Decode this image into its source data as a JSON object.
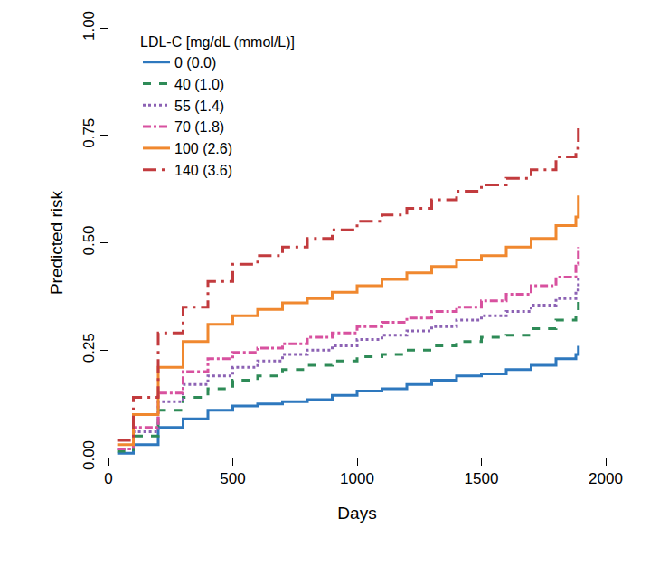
{
  "chart_data": {
    "type": "line",
    "x_label": "Days",
    "y_label": "Predicted risk",
    "legend_title": "LDL-C [mg/dL (mmol/L)]",
    "legend": "top-left",
    "grid": false,
    "marker": "none",
    "x": [
      35,
      100,
      200,
      300,
      400,
      500,
      600,
      700,
      800,
      900,
      1000,
      1100,
      1200,
      1300,
      1400,
      1500,
      1600,
      1700,
      1800,
      1880,
      1890
    ],
    "xlim": [
      0,
      2000
    ],
    "xticks": [
      0,
      500,
      1000,
      1500,
      2000
    ],
    "ylim": [
      0,
      1
    ],
    "yticks": [
      {
        "value": 0,
        "label": "0.00"
      },
      {
        "value": 0.25,
        "label": "0.25"
      },
      {
        "value": 0.5,
        "label": "0.50"
      },
      {
        "value": 0.75,
        "label": "0.75"
      },
      {
        "value": 1,
        "label": "1.00"
      }
    ],
    "series": [
      {
        "name": "0 (0.0)",
        "color": "#2e78be",
        "line_style": "solid",
        "values": [
          0.01,
          0.03,
          0.07,
          0.09,
          0.11,
          0.12,
          0.125,
          0.13,
          0.135,
          0.145,
          0.155,
          0.16,
          0.17,
          0.18,
          0.19,
          0.195,
          0.205,
          0.215,
          0.23,
          0.24,
          0.26
        ]
      },
      {
        "name": "40 (1.0)",
        "color": "#2e8b57",
        "line_style": "dashed",
        "values": [
          0.015,
          0.05,
          0.11,
          0.14,
          0.16,
          0.18,
          0.19,
          0.205,
          0.215,
          0.225,
          0.235,
          0.24,
          0.25,
          0.26,
          0.27,
          0.28,
          0.285,
          0.3,
          0.32,
          0.34,
          0.38
        ]
      },
      {
        "name": "55 (1.4)",
        "color": "#8c62b4",
        "line_style": "dotted",
        "values": [
          0.02,
          0.06,
          0.13,
          0.17,
          0.19,
          0.21,
          0.225,
          0.24,
          0.25,
          0.26,
          0.275,
          0.285,
          0.295,
          0.305,
          0.32,
          0.33,
          0.34,
          0.355,
          0.37,
          0.39,
          0.42
        ]
      },
      {
        "name": "70 (1.8)",
        "color": "#d8519f",
        "line_style": "dashdot",
        "values": [
          0.02,
          0.07,
          0.15,
          0.2,
          0.23,
          0.245,
          0.255,
          0.265,
          0.28,
          0.29,
          0.305,
          0.315,
          0.325,
          0.34,
          0.35,
          0.365,
          0.38,
          0.4,
          0.42,
          0.45,
          0.49
        ]
      },
      {
        "name": "100 (2.6)",
        "color": "#f0882f",
        "line_style": "solid",
        "values": [
          0.03,
          0.1,
          0.21,
          0.27,
          0.31,
          0.33,
          0.345,
          0.36,
          0.37,
          0.385,
          0.4,
          0.415,
          0.43,
          0.445,
          0.46,
          0.47,
          0.49,
          0.51,
          0.54,
          0.56,
          0.61
        ]
      },
      {
        "name": "140 (3.6)",
        "color": "#c23b3e",
        "line_style": "longdashdot",
        "values": [
          0.04,
          0.14,
          0.29,
          0.35,
          0.41,
          0.45,
          0.47,
          0.49,
          0.51,
          0.53,
          0.55,
          0.565,
          0.58,
          0.6,
          0.62,
          0.635,
          0.65,
          0.67,
          0.7,
          0.72,
          0.77
        ]
      }
    ]
  }
}
